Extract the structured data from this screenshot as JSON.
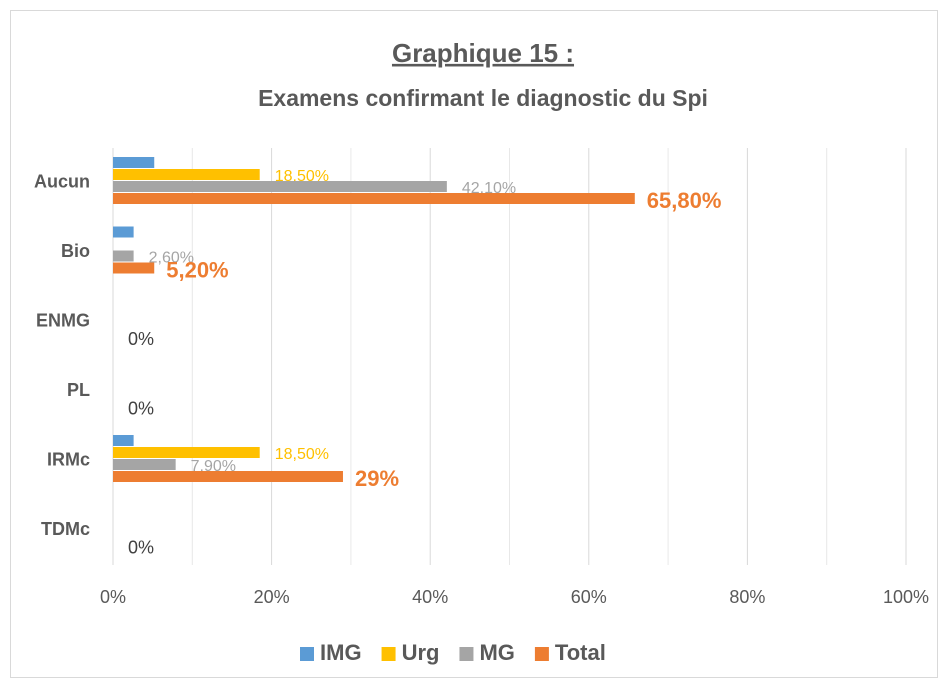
{
  "chart_data": {
    "type": "bar",
    "orientation": "horizontal",
    "title": "Graphique 15 :",
    "subtitle": "Examens confirmant le diagnostic du Spi",
    "categories": [
      "Aucun",
      "Bio",
      "ENMG",
      "PL",
      "IRMc",
      "TDMc"
    ],
    "series": [
      {
        "name": "IMG",
        "color": "#5b9bd5",
        "values": [
          5.2,
          2.6,
          0,
          0,
          2.6,
          0
        ]
      },
      {
        "name": "Urg",
        "color": "#ffc000",
        "values": [
          18.5,
          0,
          0,
          0,
          18.5,
          0
        ],
        "value_labels": [
          "18,50%",
          null,
          null,
          null,
          "18,50%",
          null
        ]
      },
      {
        "name": "MG",
        "color": "#a5a5a5",
        "values": [
          42.1,
          2.6,
          0,
          0,
          7.9,
          0
        ],
        "value_labels": [
          "42,10%",
          "2,60%",
          null,
          null,
          "7,90%",
          null
        ]
      },
      {
        "name": "Total",
        "color": "#ed7d31",
        "values": [
          65.8,
          5.2,
          0,
          0,
          29,
          0
        ],
        "value_labels": [
          "65,80%",
          "5,20%",
          "0%",
          "0%",
          "29%",
          "0%"
        ]
      }
    ],
    "xlim": [
      0,
      100
    ],
    "xticks": [
      {
        "value": 0,
        "label": "0%"
      },
      {
        "value": 20,
        "label": "20%"
      },
      {
        "value": 40,
        "label": "40%"
      },
      {
        "value": 60,
        "label": "60%"
      },
      {
        "value": 80,
        "label": "80%"
      },
      {
        "value": 100,
        "label": "100%"
      }
    ],
    "minor_xticks": [
      10,
      30,
      50,
      70,
      90
    ],
    "grid": true,
    "legend": "bottom"
  }
}
